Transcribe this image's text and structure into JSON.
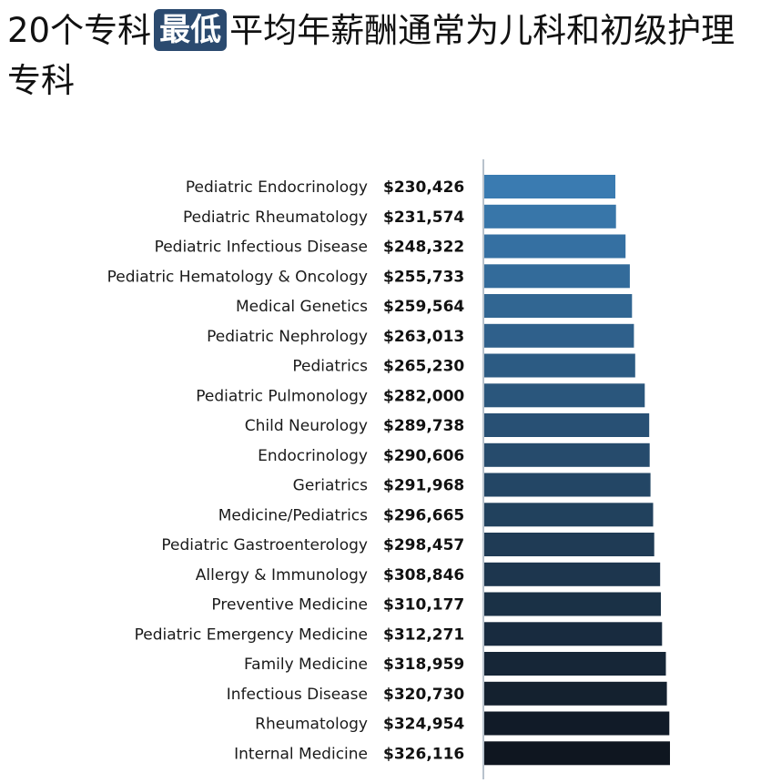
{
  "title": {
    "prefix": "20个专科",
    "highlight": "最低",
    "suffix": "平均年薪酬通常为儿科和初级护理专科"
  },
  "chart_data": {
    "type": "bar",
    "orientation": "horizontal",
    "categories": [
      "Pediatric Endocrinology",
      "Pediatric Rheumatology",
      "Pediatric Infectious Disease",
      "Pediatric Hematology & Oncology",
      "Medical Genetics",
      "Pediatric Nephrology",
      "Pediatrics",
      "Pediatric Pulmonology",
      "Child Neurology",
      "Endocrinology",
      "Geriatrics",
      "Medicine/Pediatrics",
      "Pediatric Gastroenterology",
      "Allergy & Immunology",
      "Preventive Medicine",
      "Pediatric Emergency Medicine",
      "Family Medicine",
      "Infectious Disease",
      "Rheumatology",
      "Internal Medicine"
    ],
    "values": [
      230426,
      231574,
      248322,
      255733,
      259564,
      263013,
      265230,
      282000,
      289738,
      290606,
      291968,
      296665,
      298457,
      308846,
      310177,
      312271,
      318959,
      320730,
      324954,
      326116
    ],
    "value_labels": [
      "$230,426",
      "$231,574",
      "$248,322",
      "$255,733",
      "$259,564",
      "$263,013",
      "$265,230",
      "$282,000",
      "$289,738",
      "$290,606",
      "$291,968",
      "$296,665",
      "$298,457",
      "$308,846",
      "$310,177",
      "$312,271",
      "$318,959",
      "$320,730",
      "$324,954",
      "$326,116"
    ],
    "xlim": [
      0,
      326116
    ],
    "bar_color_start": "#3a7bb1",
    "bar_color_end": "#0f1620",
    "axis_color": "#b8c2cc",
    "grid": false
  }
}
